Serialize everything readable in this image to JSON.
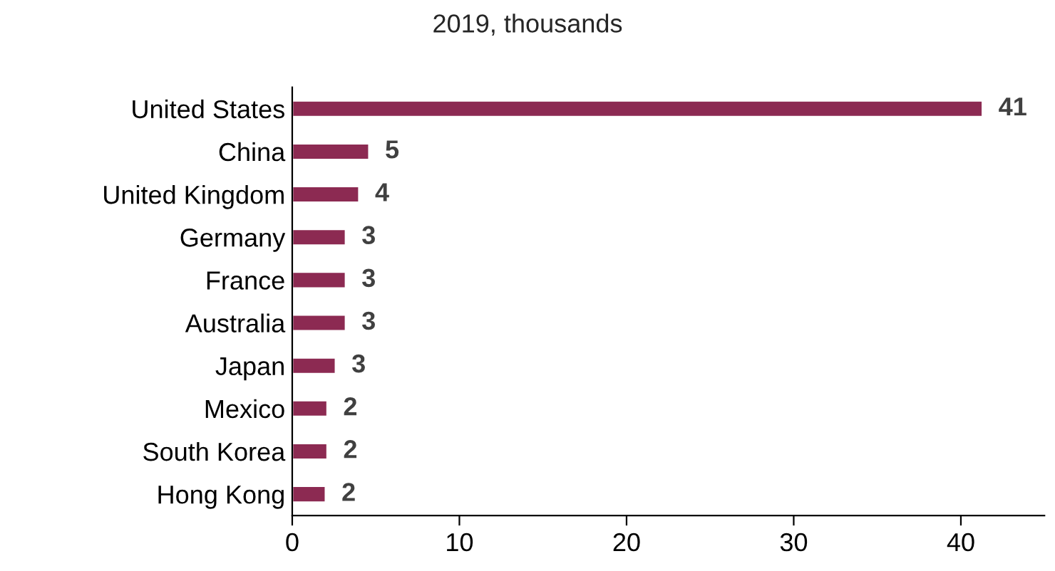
{
  "chart_data": {
    "type": "bar",
    "orientation": "horizontal",
    "title": "2019, thousands",
    "categories": [
      "United States",
      "China",
      "United Kingdom",
      "Germany",
      "France",
      "Australia",
      "Japan",
      "Mexico",
      "South Korea",
      "Hong Kong"
    ],
    "values": [
      41.3,
      4.6,
      4.0,
      3.2,
      3.2,
      3.2,
      2.6,
      2.1,
      2.1,
      2.0
    ],
    "value_labels": [
      "41",
      "5",
      "4",
      "3",
      "3",
      "3",
      "3",
      "2",
      "2",
      "2"
    ],
    "color": "#8c2a52",
    "xlim": [
      0,
      45
    ],
    "xticks": [
      0,
      10,
      20,
      30,
      40
    ],
    "grid": false,
    "legend": false
  }
}
